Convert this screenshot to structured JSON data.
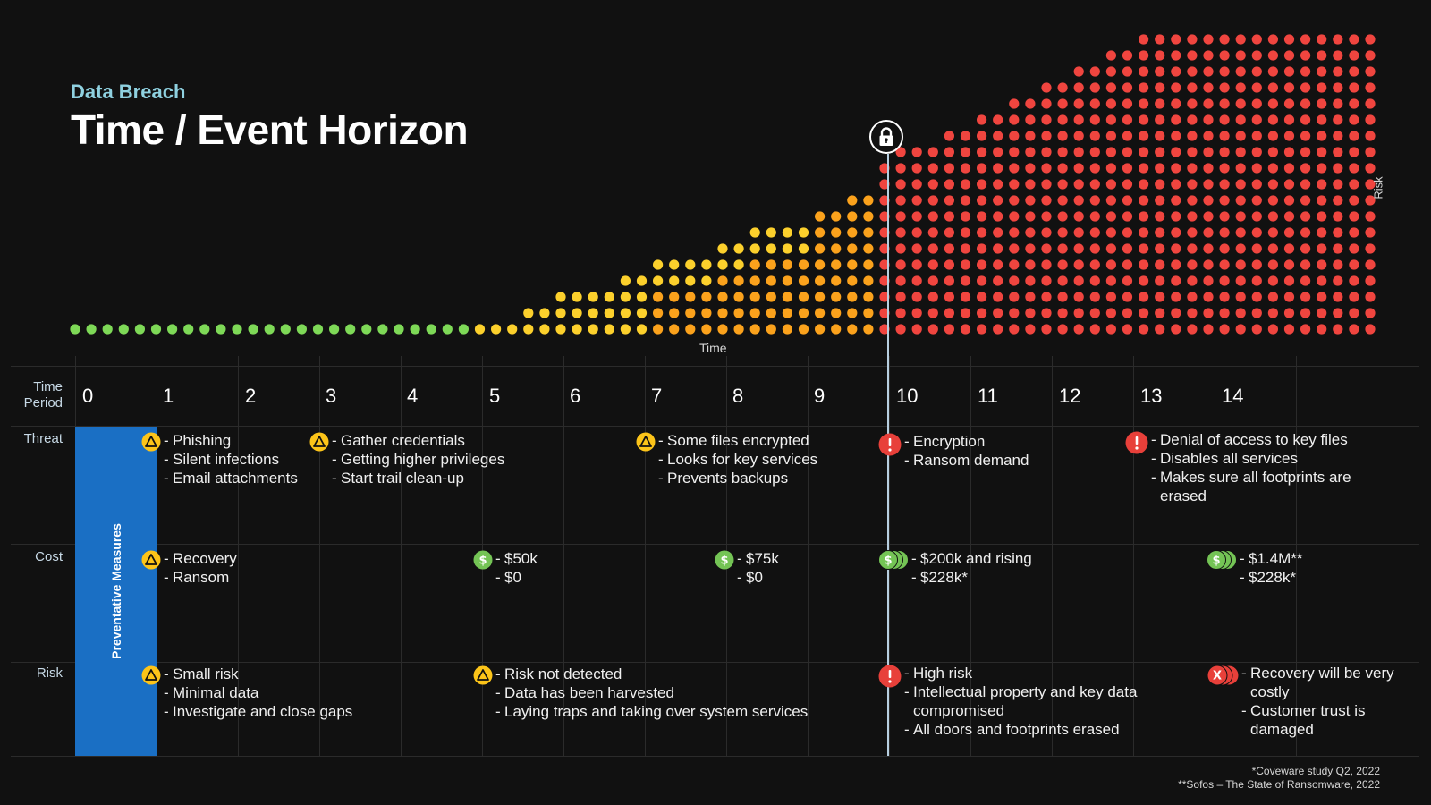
{
  "header": {
    "subtitle": "Data Breach",
    "title": "Time / Event Horizon"
  },
  "chart_data": {
    "type": "dot-matrix",
    "x_label": "Time",
    "y_label": "Risk",
    "columns_per_period": 2,
    "dot_heights": [
      1,
      1,
      1,
      1,
      1,
      1,
      1,
      1,
      1,
      1,
      1,
      1,
      1,
      1,
      1,
      1,
      1,
      1,
      1,
      1,
      1,
      1,
      1,
      1,
      1,
      1,
      1,
      1,
      2,
      2,
      3,
      3,
      3,
      3,
      4,
      4,
      5,
      5,
      5,
      5,
      6,
      6,
      7,
      7,
      7,
      7,
      8,
      8,
      9,
      9,
      11,
      12,
      12,
      12,
      13,
      13,
      14,
      14,
      15,
      15,
      16,
      16,
      17,
      17,
      18,
      18,
      19,
      19,
      19,
      19,
      19,
      19,
      19,
      19,
      19,
      19,
      19,
      19,
      19,
      19,
      19
    ],
    "colors": {
      "green": "#7ed957",
      "yellow": "#fcd02c",
      "orange": "#fba21c",
      "red": "#f0453f"
    }
  },
  "table": {
    "row_labels": {
      "period": "Time Period",
      "threat": "Threat",
      "cost": "Cost",
      "risk": "Risk"
    },
    "periods": [
      "0",
      "1",
      "2",
      "3",
      "4",
      "5",
      "6",
      "7",
      "8",
      "9",
      "10",
      "11",
      "12",
      "13",
      "14"
    ],
    "preventative_label": "Preventative Measures",
    "threat": [
      {
        "icon": "warning-icon",
        "items": [
          "Phishing",
          "Silent infections",
          "Email attachments"
        ]
      },
      {
        "icon": "warning-icon",
        "items": [
          "Gather credentials",
          "Getting higher privileges",
          "Start trail clean-up"
        ]
      },
      {
        "icon": "warning-icon",
        "items": [
          "Some files encrypted",
          "Looks for key services",
          "Prevents backups"
        ]
      },
      {
        "icon": "alert-icon",
        "items": [
          "Encryption",
          "Ransom demand"
        ]
      },
      {
        "icon": "alert-icon",
        "items": [
          "Denial of access to key files",
          "Disables all services",
          "Makes sure all footprints are erased"
        ]
      }
    ],
    "cost": [
      {
        "icon": "warning-icon",
        "items": [
          "Recovery",
          "Ransom"
        ]
      },
      {
        "icon": "dollar-icon",
        "items": [
          "$50k",
          "$0"
        ]
      },
      {
        "icon": "dollar-icon",
        "items": [
          "$75k",
          "$0"
        ]
      },
      {
        "icon": "dollar-stack-icon",
        "items": [
          "$200k and rising",
          "$228k*"
        ]
      },
      {
        "icon": "dollar-stack-icon",
        "items": [
          "$1.4M**",
          "$228k*"
        ]
      }
    ],
    "risk": [
      {
        "icon": "warning-icon",
        "items": [
          "Small risk",
          "Minimal data",
          "Investigate and close gaps"
        ]
      },
      {
        "icon": "warning-icon",
        "items": [
          "Risk not detected",
          "Data has been harvested",
          "Laying traps and taking over system services"
        ]
      },
      {
        "icon": "alert-icon",
        "items": [
          "High risk",
          "Intellectual property and key data compromised",
          "All doors and footprints erased"
        ]
      },
      {
        "icon": "x-stack-icon",
        "items": [
          "Recovery will be very costly",
          "Customer trust is damaged"
        ]
      }
    ]
  },
  "footnotes": [
    "*Coveware study Q2, 2022",
    "**Sofos – The State of Ransomware, 2022"
  ],
  "marker_icon": "lock-icon"
}
